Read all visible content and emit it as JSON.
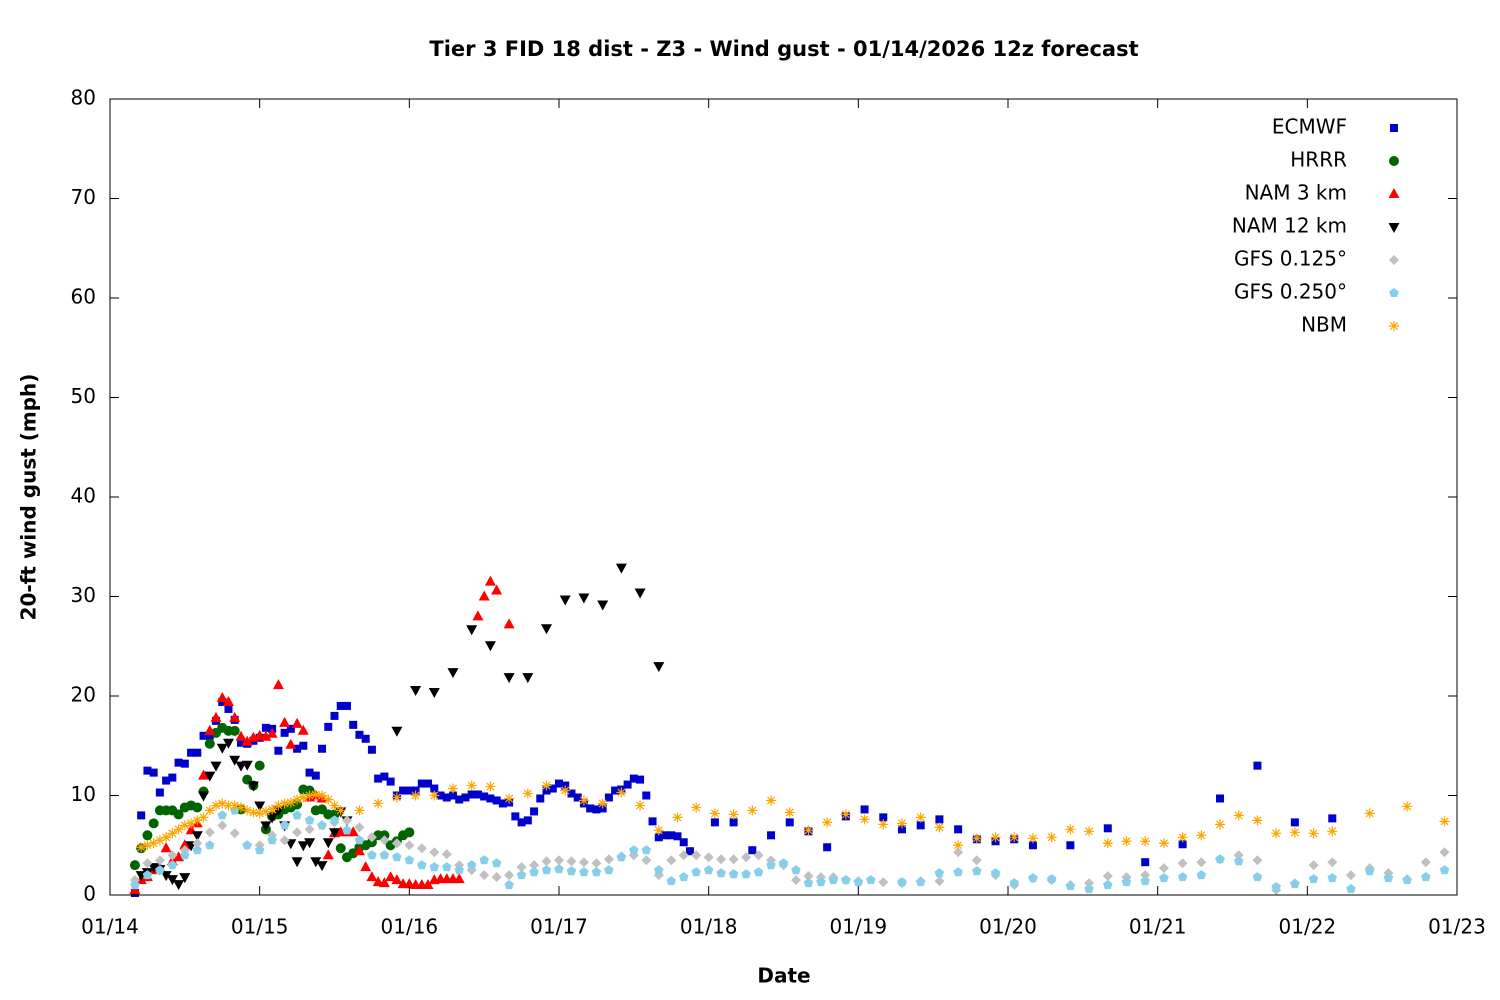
{
  "chart_data": {
    "type": "scatter",
    "title": "Tier 3 FID 18 dist - Z3 - Wind gust - 01/14/2026 12z forecast",
    "x_label": "Date",
    "y_label": "20-ft wind gust (mph)",
    "xlim": [
      0,
      216
    ],
    "ylim": [
      0,
      80
    ],
    "xticks": [
      {
        "value": 0,
        "label": "01/14"
      },
      {
        "value": 24,
        "label": "01/15"
      },
      {
        "value": 48,
        "label": "01/16"
      },
      {
        "value": 72,
        "label": "01/17"
      },
      {
        "value": 96,
        "label": "01/18"
      },
      {
        "value": 120,
        "label": "01/19"
      },
      {
        "value": 144,
        "label": "01/20"
      },
      {
        "value": 168,
        "label": "01/21"
      },
      {
        "value": 192,
        "label": "01/22"
      },
      {
        "value": 216,
        "label": "01/23"
      }
    ],
    "yticks": [
      0,
      10,
      20,
      30,
      40,
      50,
      60,
      70,
      80
    ],
    "legend": "top-right",
    "series": [
      {
        "name": "ECMWF",
        "color": "#0000cc",
        "marker": "square",
        "x": [
          4,
          5,
          6,
          7,
          8,
          9,
          10,
          11,
          12,
          13,
          14,
          15,
          16,
          17,
          18,
          19,
          20,
          21,
          22,
          23,
          24,
          25,
          26,
          27,
          28,
          29,
          30,
          31,
          32,
          33,
          34,
          35,
          36,
          37,
          38,
          39,
          40,
          41,
          42,
          43,
          44,
          45,
          46,
          47,
          48,
          49,
          50,
          51,
          52,
          53,
          54,
          55,
          56,
          57,
          58,
          59,
          60,
          61,
          62,
          63,
          64,
          65,
          66,
          67,
          68,
          69,
          70,
          71,
          72,
          73,
          74,
          75,
          76,
          77,
          78,
          79,
          80,
          81,
          82,
          83,
          84,
          85,
          86,
          87,
          88,
          89,
          90,
          91,
          92,
          93,
          97,
          100,
          103,
          106,
          109,
          112,
          115,
          118,
          121,
          124,
          127,
          130,
          133,
          136,
          139,
          142,
          145,
          148,
          154,
          160,
          166,
          172,
          178,
          184,
          190,
          196
        ],
        "values": [
          0.2,
          8,
          12.5,
          12.3,
          10.3,
          11.5,
          11.8,
          13.3,
          13.2,
          14.3,
          14.3,
          16,
          16,
          17.5,
          19.4,
          18.7,
          17.6,
          15.3,
          15.2,
          15.5,
          15.8,
          16.8,
          16.7,
          14.5,
          16.3,
          16.7,
          14.7,
          15.0,
          12.3,
          12.0,
          14.7,
          16.9,
          18.0,
          19.0,
          19.0,
          17.1,
          16.1,
          15.7,
          14.6,
          11.7,
          11.9,
          11.4,
          10.0,
          10.5,
          10.5,
          10.5,
          11.2,
          11.2,
          10.7,
          10.0,
          9.8,
          10.0,
          9.6,
          9.8,
          10.1,
          10.1,
          9.9,
          9.7,
          9.5,
          9.2,
          9.3,
          7.9,
          7.3,
          7.5,
          8.4,
          9.7,
          10.5,
          10.7,
          11.2,
          11.0,
          10.2,
          9.8,
          9.2,
          8.7,
          8.6,
          8.7,
          9.8,
          10.5,
          10.6,
          11.1,
          11.7,
          11.6,
          10.0,
          7.4,
          5.8,
          6.0,
          6.0,
          5.9,
          5.3,
          4.4,
          7.3,
          7.3,
          4.5,
          6.0,
          7.3,
          6.4,
          4.8,
          7.9,
          8.6,
          7.8,
          6.6,
          7.0,
          7.6,
          6.6,
          5.6,
          5.4,
          5.6,
          5.0,
          5.0,
          6.7,
          3.3,
          5.1,
          9.7,
          13.0,
          7.3,
          7.7
        ]
      },
      {
        "name": "HRRR",
        "color": "#006400",
        "marker": "circle",
        "x": [
          4,
          5,
          6,
          7,
          8,
          9,
          10,
          11,
          12,
          13,
          14,
          15,
          16,
          17,
          18,
          19,
          20,
          21,
          22,
          23,
          24,
          25,
          26,
          27,
          28,
          29,
          30,
          31,
          32,
          33,
          34,
          35,
          36,
          37,
          38,
          39,
          40,
          41,
          42,
          43,
          44,
          45,
          46,
          47,
          48
        ],
        "values": [
          3.0,
          4.7,
          6.0,
          7.2,
          8.5,
          8.5,
          8.5,
          8.1,
          8.8,
          9.0,
          8.8,
          10.4,
          15.2,
          16.3,
          16.8,
          16.5,
          16.5,
          8.6,
          11.6,
          11.0,
          13.0,
          6.6,
          7.9,
          8.1,
          8.6,
          8.8,
          9.1,
          10.6,
          10.5,
          8.5,
          8.6,
          8.1,
          8.1,
          4.7,
          3.8,
          4.2,
          4.8,
          5.0,
          5.3,
          6.0,
          6.0,
          5.0,
          5.4,
          6.0,
          6.3
        ]
      },
      {
        "name": "NAM 3 km",
        "color": "#ff0000",
        "marker": "triangle-up",
        "x": [
          4,
          5,
          6,
          7,
          8,
          9,
          10,
          11,
          12,
          13,
          14,
          15,
          16,
          17,
          18,
          19,
          20,
          21,
          22,
          23,
          24,
          25,
          26,
          27,
          28,
          29,
          30,
          31,
          32,
          33,
          34,
          35,
          36,
          37,
          38,
          39,
          40,
          41,
          42,
          43,
          44,
          45,
          46,
          47,
          48,
          49,
          50,
          51,
          52,
          53,
          54,
          55,
          56,
          59,
          60,
          61,
          62,
          64
        ],
        "values": [
          0.5,
          1.5,
          1.8,
          2.5,
          2.7,
          4.7,
          3.4,
          3.8,
          5.0,
          6.5,
          7.2,
          12.0,
          16.5,
          17.8,
          19.8,
          19.4,
          17.8,
          15.9,
          15.4,
          15.8,
          16.0,
          15.9,
          16.2,
          21.1,
          17.3,
          15.1,
          17.2,
          16.5,
          9.8,
          10.0,
          9.7,
          4.0,
          6.2,
          6.3,
          6.3,
          6.3,
          4.4,
          2.8,
          1.8,
          1.3,
          1.2,
          1.8,
          1.5,
          1.1,
          1.1,
          1.0,
          1.0,
          1.0,
          1.5,
          1.6,
          1.6,
          1.6,
          1.6,
          28.0,
          30.0,
          31.5,
          30.6,
          27.2
        ]
      },
      {
        "name": "NAM 12 km",
        "color": "#000000",
        "marker": "triangle-down",
        "x": [
          5,
          6,
          7,
          8,
          9,
          10,
          11,
          12,
          13,
          14,
          15,
          16,
          17,
          18,
          19,
          20,
          21,
          22,
          23,
          24,
          25,
          26,
          27,
          28,
          29,
          30,
          31,
          32,
          33,
          34,
          35,
          36,
          37,
          38,
          46,
          49,
          52,
          55,
          58,
          61,
          64,
          67,
          70,
          73,
          76,
          79,
          82,
          85,
          88
        ],
        "values": [
          2.0,
          2.3,
          2.8,
          2.6,
          2.0,
          1.6,
          1.1,
          1.8,
          5.0,
          6.0,
          10.0,
          12.0,
          13.0,
          14.8,
          15.3,
          13.6,
          13.0,
          13.1,
          11.0,
          9.0,
          7.0,
          7.8,
          8.5,
          7.0,
          5.2,
          3.4,
          5.0,
          5.3,
          3.4,
          3.0,
          5.3,
          6.3,
          8.4,
          7.5,
          16.5,
          20.6,
          20.4,
          22.4,
          26.7,
          25.1,
          21.9,
          21.9,
          26.8,
          29.7,
          29.9,
          29.2,
          32.9,
          30.4,
          23.0
        ]
      },
      {
        "name": "GFS 0.125°",
        "color": "#c0c0c0",
        "marker": "diamond",
        "x": [
          4,
          6,
          8,
          10,
          12,
          14,
          16,
          18,
          20,
          22,
          24,
          26,
          28,
          30,
          32,
          34,
          36,
          38,
          40,
          42,
          44,
          46,
          48,
          50,
          52,
          54,
          56,
          58,
          60,
          62,
          64,
          66,
          68,
          70,
          72,
          74,
          76,
          78,
          80,
          82,
          84,
          86,
          88,
          90,
          92,
          94,
          96,
          98,
          100,
          102,
          104,
          106,
          108,
          110,
          112,
          114,
          116,
          118,
          120,
          124,
          127,
          130,
          133,
          136,
          139,
          142,
          145,
          148,
          151,
          154,
          157,
          160,
          163,
          166,
          169,
          172,
          175,
          178,
          181,
          184,
          187,
          190,
          193,
          196,
          199,
          202,
          205,
          208,
          211,
          214
        ],
        "values": [
          1.5,
          3.2,
          3.5,
          4.0,
          4.5,
          5.2,
          6.3,
          7.0,
          6.2,
          5.0,
          5.0,
          6.0,
          5.5,
          6.3,
          6.6,
          7.0,
          7.3,
          7.5,
          6.8,
          5.8,
          5.5,
          5.2,
          5.0,
          4.7,
          4.3,
          4.1,
          3.0,
          2.5,
          2.0,
          1.8,
          2.0,
          2.8,
          3.0,
          3.4,
          3.5,
          3.4,
          3.3,
          3.2,
          3.6,
          3.9,
          4.0,
          3.5,
          2.0,
          3.5,
          4.0,
          4.0,
          3.8,
          3.6,
          3.6,
          3.8,
          4.0,
          3.5,
          3.0,
          1.5,
          1.9,
          1.8,
          1.8,
          1.5,
          1.4,
          1.3,
          1.2,
          1.4,
          1.4,
          4.3,
          3.5,
          2.0,
          1.0,
          1.7,
          1.5,
          1.0,
          1.2,
          1.9,
          1.8,
          2.0,
          2.7,
          3.2,
          3.3,
          3.6,
          4.0,
          3.5,
          0.5,
          1.2,
          3.0,
          3.3,
          2.0,
          2.7,
          2.2,
          1.6,
          3.3,
          4.3
        ]
      },
      {
        "name": "GFS 0.250°",
        "color": "#87ceeb",
        "marker": "pentagon",
        "x": [
          4,
          6,
          8,
          10,
          12,
          14,
          16,
          18,
          20,
          22,
          24,
          26,
          28,
          30,
          32,
          34,
          36,
          38,
          40,
          42,
          44,
          46,
          48,
          50,
          52,
          54,
          56,
          58,
          60,
          62,
          64,
          66,
          68,
          70,
          72,
          74,
          76,
          78,
          80,
          82,
          84,
          86,
          88,
          90,
          92,
          94,
          96,
          98,
          100,
          102,
          104,
          106,
          108,
          110,
          112,
          114,
          116,
          118,
          120,
          122,
          127,
          130,
          133,
          136,
          139,
          142,
          145,
          148,
          151,
          154,
          157,
          160,
          163,
          166,
          169,
          172,
          175,
          178,
          181,
          184,
          187,
          190,
          193,
          196,
          199,
          202,
          205,
          208,
          211,
          214
        ],
        "values": [
          1.0,
          2.0,
          2.5,
          3.0,
          4.0,
          4.5,
          5.0,
          8.0,
          8.5,
          5.0,
          4.5,
          5.5,
          7.0,
          8.0,
          7.5,
          7.0,
          7.5,
          6.5,
          5.5,
          4.0,
          4.0,
          3.8,
          3.5,
          3.0,
          2.8,
          2.8,
          2.5,
          3.0,
          3.5,
          3.2,
          1.0,
          2.0,
          2.3,
          2.5,
          2.6,
          2.4,
          2.3,
          2.3,
          2.5,
          3.8,
          4.5,
          4.5,
          2.5,
          1.4,
          1.8,
          2.3,
          2.5,
          2.2,
          2.1,
          2.1,
          2.3,
          3.0,
          3.2,
          2.5,
          1.2,
          1.3,
          1.5,
          1.5,
          1.3,
          1.5,
          1.3,
          1.3,
          2.2,
          2.3,
          2.4,
          2.2,
          1.2,
          1.7,
          1.6,
          0.9,
          0.6,
          1.0,
          1.3,
          1.4,
          1.7,
          1.8,
          2.0,
          3.6,
          3.4,
          1.8,
          0.8,
          1.1,
          1.6,
          1.7,
          0.6,
          2.4,
          1.7,
          1.5,
          1.8,
          2.5
        ]
      },
      {
        "name": "NBM",
        "color": "#ffa500",
        "marker": "star",
        "x": [
          5,
          6,
          7,
          8,
          9,
          10,
          11,
          12,
          13,
          14,
          15,
          16,
          17,
          18,
          19,
          20,
          21,
          22,
          23,
          24,
          25,
          26,
          27,
          28,
          29,
          30,
          31,
          32,
          33,
          34,
          35,
          36,
          37,
          40,
          43,
          46,
          49,
          52,
          55,
          58,
          61,
          64,
          67,
          70,
          73,
          76,
          79,
          82,
          85,
          88,
          91,
          94,
          97,
          100,
          103,
          106,
          109,
          112,
          115,
          118,
          121,
          124,
          127,
          130,
          133,
          136,
          139,
          142,
          145,
          148,
          151,
          154,
          157,
          160,
          163,
          166,
          169,
          172,
          175,
          178,
          181,
          184,
          187,
          190,
          193,
          196,
          202,
          208,
          214
        ],
        "values": [
          4.8,
          5.0,
          5.2,
          5.5,
          5.8,
          6.2,
          6.6,
          7.0,
          7.2,
          7.5,
          7.8,
          8.5,
          9.0,
          9.2,
          9.0,
          9.0,
          8.8,
          8.5,
          8.3,
          8.2,
          8.4,
          8.6,
          9.0,
          9.2,
          9.3,
          9.6,
          9.8,
          10.0,
          10.1,
          10.0,
          9.6,
          9.0,
          8.5,
          8.5,
          9.2,
          9.8,
          10.0,
          10.0,
          10.7,
          11.0,
          10.9,
          9.7,
          10.2,
          11.0,
          10.5,
          9.5,
          9.2,
          10.3,
          9.0,
          6.5,
          7.8,
          8.8,
          8.2,
          8.1,
          8.5,
          9.5,
          8.3,
          6.5,
          7.3,
          8.1,
          7.6,
          7.1,
          7.2,
          7.8,
          6.8,
          5.0,
          5.7,
          5.8,
          5.8,
          5.7,
          5.8,
          6.6,
          6.4,
          5.2,
          5.4,
          5.4,
          5.2,
          5.8,
          6.0,
          7.1,
          8.0,
          7.5,
          6.2,
          6.3,
          6.2,
          6.4,
          8.2,
          8.9,
          7.4
        ]
      }
    ]
  }
}
